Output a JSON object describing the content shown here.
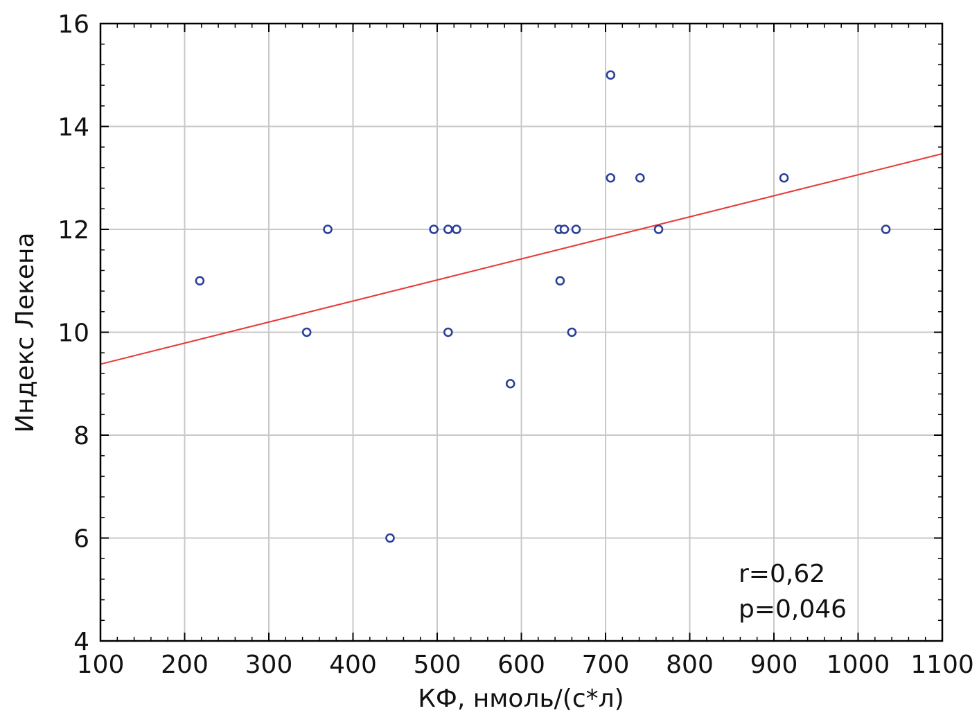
{
  "chart_data": {
    "type": "scatter",
    "title": "",
    "xlabel": "КФ, нмоль/(с*л)",
    "ylabel": "Индекс Лекена",
    "xlim": [
      100,
      1100
    ],
    "ylim": [
      4,
      16
    ],
    "xticks": [
      100,
      200,
      300,
      400,
      500,
      600,
      700,
      800,
      900,
      1000,
      1100
    ],
    "yticks": [
      4,
      6,
      8,
      10,
      12,
      14,
      16
    ],
    "grid": true,
    "series": [
      {
        "points": [
          {
            "x": 218,
            "y": 11
          },
          {
            "x": 345,
            "y": 10
          },
          {
            "x": 370,
            "y": 12
          },
          {
            "x": 444,
            "y": 6
          },
          {
            "x": 496,
            "y": 12
          },
          {
            "x": 513,
            "y": 12
          },
          {
            "x": 513,
            "y": 10
          },
          {
            "x": 523,
            "y": 12
          },
          {
            "x": 587,
            "y": 9
          },
          {
            "x": 645,
            "y": 12
          },
          {
            "x": 646,
            "y": 11
          },
          {
            "x": 651,
            "y": 12
          },
          {
            "x": 660,
            "y": 10
          },
          {
            "x": 665,
            "y": 12
          },
          {
            "x": 706,
            "y": 15
          },
          {
            "x": 706,
            "y": 13
          },
          {
            "x": 741,
            "y": 13
          },
          {
            "x": 763,
            "y": 12
          },
          {
            "x": 912,
            "y": 13
          },
          {
            "x": 1033,
            "y": 12
          }
        ],
        "marker": "open-circle",
        "color": "#2a3f9a"
      }
    ],
    "trendline": {
      "type": "linear",
      "from": {
        "x": 100,
        "y": 9.38
      },
      "to": {
        "x": 1100,
        "y": 13.47
      },
      "color": "#e53935"
    },
    "annotations": [
      "r=0,62",
      "p=0,046"
    ]
  }
}
